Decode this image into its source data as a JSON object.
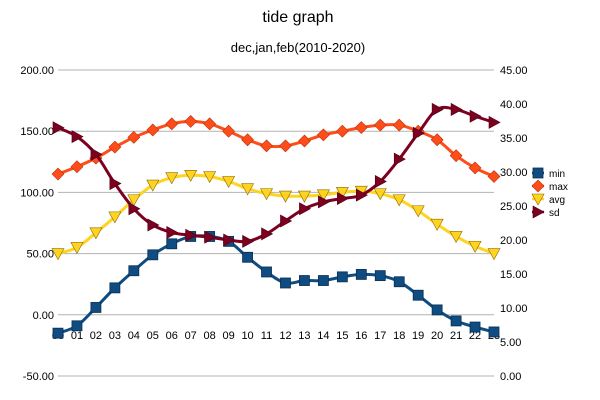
{
  "chart_data": {
    "type": "line",
    "title": "tide graph",
    "subtitle": "dec,jan,feb(2010-2020)",
    "xlabel": "",
    "ylabel": "",
    "y2label": "",
    "categories": [
      "00",
      "01",
      "02",
      "03",
      "04",
      "05",
      "06",
      "07",
      "08",
      "09",
      "10",
      "11",
      "12",
      "13",
      "14",
      "15",
      "16",
      "17",
      "18",
      "19",
      "20",
      "21",
      "22",
      "23"
    ],
    "ylim": [
      -50,
      200
    ],
    "y2lim": [
      0,
      45
    ],
    "y_ticks": [
      "-50.00",
      "0.00",
      "50.00",
      "100.00",
      "150.00",
      "200.00"
    ],
    "y2_ticks": [
      "0.00",
      "5.00",
      "10.00",
      "15.00",
      "20.00",
      "25.00",
      "30.00",
      "35.00",
      "40.00",
      "45.00"
    ],
    "grid": "horizontal major on left axis",
    "legend_position": "right",
    "series": [
      {
        "name": "min",
        "axis": "left",
        "marker": "square",
        "color": "#0f4c81",
        "values": [
          -15,
          -9,
          6,
          22,
          36,
          49,
          58,
          64,
          64,
          60,
          47,
          35,
          26,
          28,
          28,
          31,
          33,
          32,
          27,
          16,
          4,
          -5,
          -10,
          -14
        ]
      },
      {
        "name": "max",
        "axis": "left",
        "marker": "diamond",
        "color": "#ff4d1a",
        "values": [
          115,
          121,
          128,
          137,
          145,
          151,
          156,
          158,
          156,
          150,
          143,
          138,
          138,
          142,
          147,
          150,
          153,
          155,
          155,
          150,
          143,
          130,
          120,
          113
        ]
      },
      {
        "name": "avg",
        "axis": "left",
        "marker": "triangle-down",
        "color": "#ffd320",
        "values": [
          50,
          55,
          67,
          80,
          94,
          106,
          112,
          114,
          113,
          109,
          103,
          99,
          97,
          97,
          98,
          100,
          101,
          99,
          94,
          85,
          74,
          64,
          56,
          50
        ]
      },
      {
        "name": "sd",
        "axis": "right",
        "marker": "triangle-right",
        "color": "#7e0021",
        "values": [
          36.5,
          35.2,
          32.6,
          28.3,
          24.6,
          22.2,
          21.1,
          20.7,
          20.4,
          20.0,
          19.8,
          20.9,
          22.8,
          24.6,
          25.6,
          26.1,
          26.6,
          28.6,
          31.9,
          35.7,
          39.2,
          39.2,
          38.2,
          37.3
        ]
      }
    ]
  }
}
